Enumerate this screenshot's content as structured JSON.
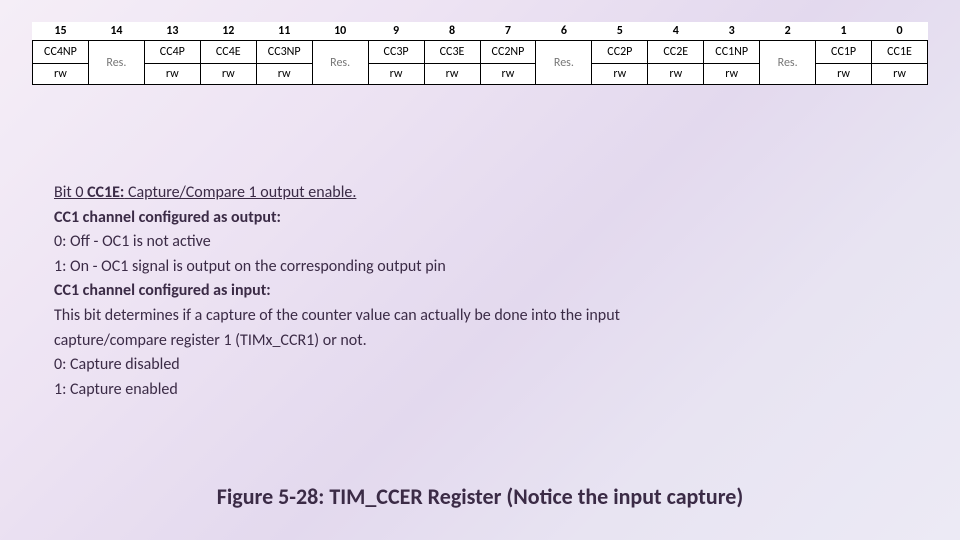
{
  "register_table": {
    "bit_numbers": [
      "15",
      "14",
      "13",
      "12",
      "11",
      "10",
      "9",
      "8",
      "7",
      "6",
      "5",
      "4",
      "3",
      "2",
      "1",
      "0"
    ],
    "bit_names": [
      "CC4NP",
      "Res.",
      "CC4P",
      "CC4E",
      "CC3NP",
      "Res.",
      "CC3P",
      "CC3E",
      "CC2NP",
      "Res.",
      "CC2P",
      "CC2E",
      "CC1NP",
      "Res.",
      "CC1P",
      "CC1E"
    ],
    "name_is_res": [
      false,
      true,
      false,
      false,
      false,
      true,
      false,
      false,
      false,
      true,
      false,
      false,
      false,
      true,
      false,
      false
    ],
    "rw": [
      "rw",
      "",
      "rw",
      "rw",
      "rw",
      "",
      "rw",
      "rw",
      "rw",
      "",
      "rw",
      "rw",
      "rw",
      "",
      "rw",
      "rw"
    ]
  },
  "description": {
    "l1_prefix": "Bit 0 ",
    "l1_bold": "CC1E:",
    "l1_rest": " Capture/Compare 1 output enable.",
    "l2": "CC1 channel configured as output:",
    "l3": "0: Off - OC1 is not active",
    "l4": "1: On - OC1 signal is output on the corresponding output pin",
    "l5": "CC1 channel configured as input:",
    "l6": "This bit determines if a capture of the counter value can actually be done into the input",
    "l7": "capture/compare register 1 (TIMx_CCR1) or not.",
    "l8": "0: Capture disabled",
    "l9": "1: Capture enabled"
  },
  "caption": "Figure 5-28: TIM_CCER Register (Notice the input capture)"
}
